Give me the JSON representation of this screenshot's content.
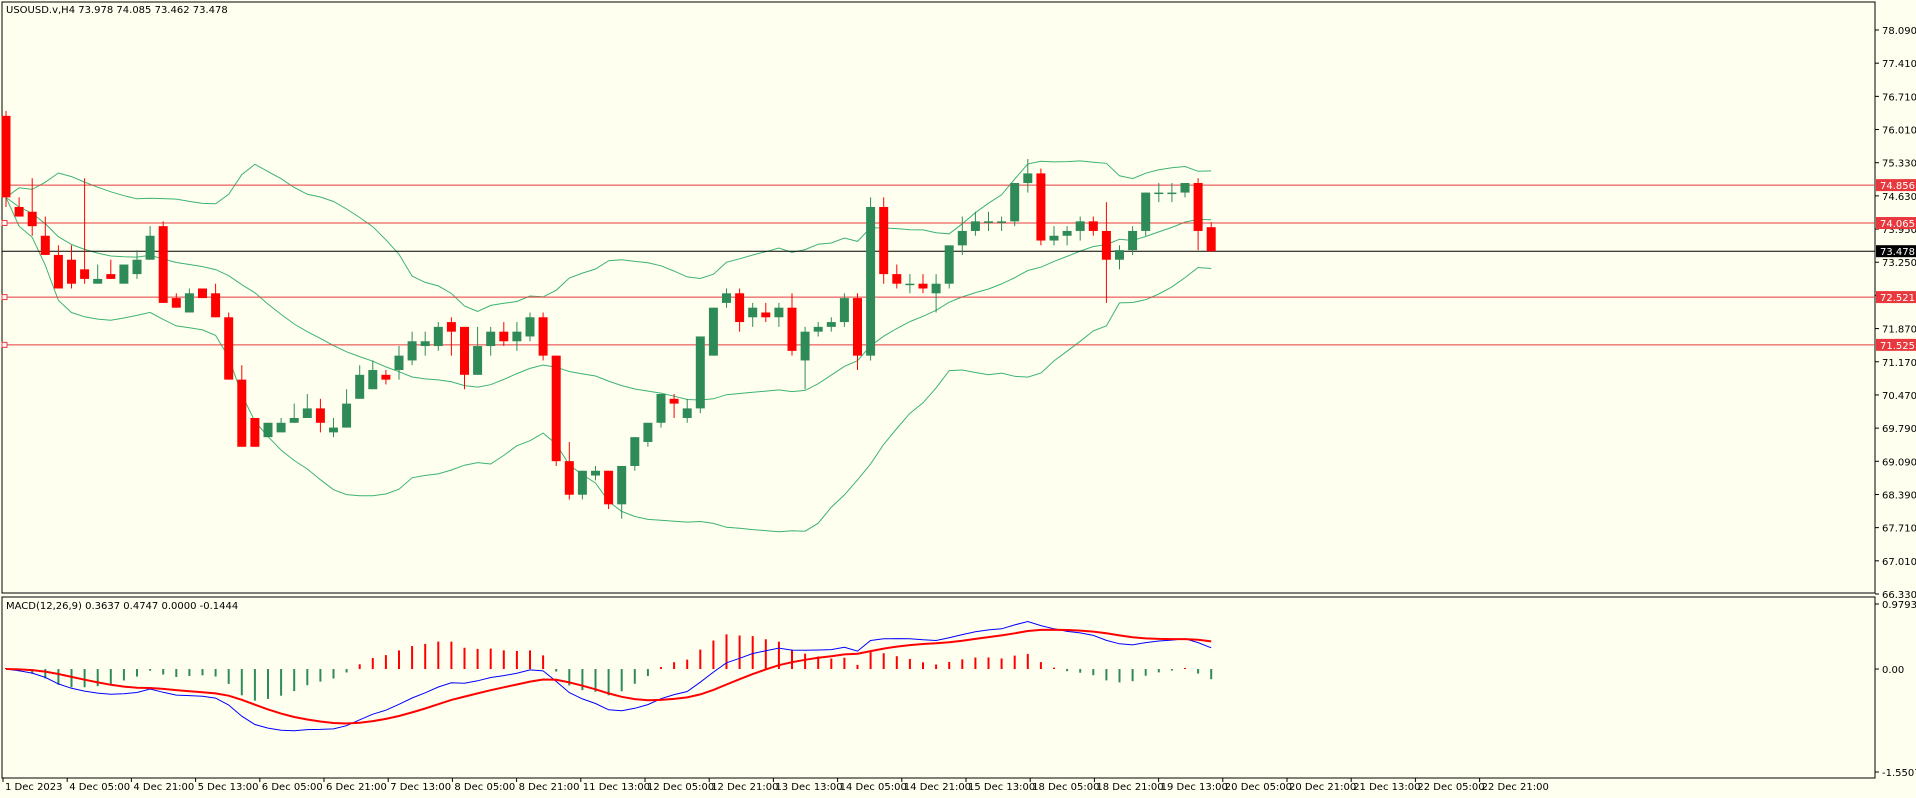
{
  "header": {
    "symbol_info": "USOUSD.v,H4  73.978 74.085 73.462 73.478",
    "macd_info": "MACD(12,26,9) 0.3637 0.4747 0.0000 -0.1444"
  },
  "colors": {
    "background": "#fffff0",
    "bull": "#2e8b57",
    "bear": "#ff0000",
    "bands": "#3cb371",
    "level_line": "#e8383d",
    "current_line": "#000000",
    "macd_line": "#0000ff",
    "signal_line": "#ff0000"
  },
  "chart_data": [
    {
      "type": "candlestick",
      "title": "USOUSD.v,H4",
      "ohlc_header": {
        "open": 73.978,
        "high": 74.085,
        "low": 73.462,
        "close": 73.478
      },
      "ylim": [
        66.33,
        78.6
      ],
      "y_ticks": [
        "78.090",
        "77.410",
        "76.710",
        "76.010",
        "75.330",
        "74.630",
        "73.950",
        "73.250",
        "72.570",
        "71.870",
        "71.170",
        "70.470",
        "69.790",
        "69.090",
        "68.390",
        "67.710",
        "67.010",
        "66.330"
      ],
      "x_ticks": [
        "1 Dec 2023",
        "4 Dec 05:00",
        "4 Dec 21:00",
        "5 Dec 13:00",
        "6 Dec 05:00",
        "6 Dec 21:00",
        "7 Dec 13:00",
        "8 Dec 05:00",
        "8 Dec 21:00",
        "11 Dec 13:00",
        "12 Dec 05:00",
        "12 Dec 21:00",
        "13 Dec 13:00",
        "14 Dec 05:00",
        "14 Dec 21:00",
        "15 Dec 13:00",
        "18 Dec 05:00",
        "18 Dec 21:00",
        "19 Dec 13:00",
        "20 Dec 05:00",
        "20 Dec 21:00",
        "21 Dec 13:00",
        "22 Dec 05:00",
        "22 Dec 21:00"
      ],
      "level_lines": [
        {
          "price": 74.856,
          "label": "74.856"
        },
        {
          "price": 74.065,
          "label": "74.065"
        },
        {
          "price": 72.521,
          "label": "72.521"
        },
        {
          "price": 71.525,
          "label": "71.525"
        }
      ],
      "current_price": {
        "price": 73.478,
        "label": "73.478"
      },
      "candles": [
        [
          76.3,
          76.4,
          74.6,
          74.4
        ],
        [
          74.4,
          74.6,
          74.2,
          74.3
        ],
        [
          74.3,
          75.0,
          74.0,
          73.8
        ],
        [
          73.8,
          74.2,
          73.4,
          73.4
        ],
        [
          73.4,
          73.6,
          72.7,
          73.3
        ],
        [
          73.3,
          73.6,
          72.8,
          72.7
        ],
        [
          73.1,
          75.0,
          72.9,
          72.8
        ],
        [
          72.8,
          73.2,
          72.9,
          73.1
        ],
        [
          73.0,
          73.3,
          72.9,
          73.2
        ],
        [
          72.8,
          73.1,
          73.2,
          73.1
        ],
        [
          73.0,
          73.5,
          73.3,
          72.9
        ],
        [
          73.3,
          74.0,
          73.8,
          73.3
        ],
        [
          74.0,
          74.1,
          72.4,
          72.5
        ],
        [
          72.5,
          72.6,
          72.3,
          72.3
        ],
        [
          72.2,
          72.7,
          72.6,
          72.5
        ],
        [
          72.7,
          72.5,
          72.5,
          72.6
        ],
        [
          72.6,
          72.8,
          72.1,
          72.1
        ],
        [
          72.1,
          72.2,
          70.8,
          70.8
        ],
        [
          70.8,
          71.1,
          69.4,
          70.0
        ],
        [
          70.0,
          70.0,
          69.4,
          69.5
        ],
        [
          69.6,
          69.9,
          69.9,
          69.6
        ],
        [
          69.7,
          70.0,
          69.9,
          69.8
        ],
        [
          69.9,
          70.3,
          70.0,
          69.9
        ],
        [
          70.0,
          70.5,
          70.2,
          70.1
        ],
        [
          70.2,
          70.4,
          69.9,
          69.7
        ],
        [
          69.7,
          70.0,
          69.8,
          69.6
        ],
        [
          69.8,
          70.6,
          70.3,
          69.8
        ],
        [
          70.4,
          71.1,
          70.9,
          70.4
        ],
        [
          70.6,
          71.2,
          71.0,
          70.6
        ],
        [
          70.9,
          71.0,
          70.8,
          70.7
        ],
        [
          71.0,
          71.5,
          71.3,
          70.8
        ],
        [
          71.2,
          71.8,
          71.6,
          71.1
        ],
        [
          71.5,
          71.8,
          71.6,
          71.3
        ],
        [
          71.5,
          72.0,
          71.9,
          71.4
        ],
        [
          72.0,
          72.1,
          71.8,
          71.3
        ],
        [
          71.9,
          71.1,
          70.9,
          70.6
        ],
        [
          70.9,
          71.9,
          71.5,
          70.9
        ],
        [
          71.5,
          71.9,
          71.8,
          71.3
        ],
        [
          71.8,
          72.0,
          71.6,
          71.5
        ],
        [
          71.6,
          72.0,
          71.8,
          71.4
        ],
        [
          71.7,
          72.2,
          72.1,
          71.6
        ],
        [
          72.1,
          72.2,
          71.3,
          71.2
        ],
        [
          71.3,
          71.3,
          69.1,
          69.0
        ],
        [
          69.1,
          69.5,
          68.4,
          68.3
        ],
        [
          68.4,
          68.8,
          68.9,
          68.3
        ],
        [
          68.8,
          69.0,
          68.9,
          68.7
        ],
        [
          68.9,
          68.9,
          68.2,
          68.1
        ],
        [
          68.2,
          68.1,
          69.0,
          67.9
        ],
        [
          69.0,
          69.1,
          69.6,
          68.9
        ],
        [
          69.5,
          69.9,
          69.9,
          69.4
        ],
        [
          69.9,
          70.2,
          70.5,
          69.8
        ],
        [
          70.4,
          70.5,
          70.3,
          70.0
        ],
        [
          70.0,
          70.4,
          70.2,
          69.9
        ],
        [
          70.2,
          70.8,
          71.7,
          70.1
        ],
        [
          71.3,
          71.7,
          72.3,
          71.3
        ],
        [
          72.4,
          72.7,
          72.6,
          72.3
        ],
        [
          72.6,
          72.7,
          72.0,
          71.8
        ],
        [
          72.1,
          72.4,
          72.3,
          71.9
        ],
        [
          72.2,
          72.4,
          72.1,
          72.0
        ],
        [
          72.1,
          72.4,
          72.3,
          71.9
        ],
        [
          72.3,
          72.6,
          71.4,
          71.3
        ],
        [
          71.2,
          71.9,
          71.8,
          70.6
        ],
        [
          71.8,
          72.0,
          71.9,
          71.7
        ],
        [
          71.9,
          72.1,
          72.0,
          71.8
        ],
        [
          72.0,
          72.6,
          72.5,
          71.9
        ],
        [
          72.5,
          72.6,
          71.3,
          71.0
        ],
        [
          71.3,
          74.6,
          74.4,
          71.2
        ],
        [
          74.4,
          74.6,
          73.0,
          72.8
        ],
        [
          73.0,
          73.2,
          72.8,
          72.7
        ],
        [
          72.8,
          73.0,
          72.8,
          72.6
        ],
        [
          72.8,
          73.0,
          72.7,
          72.6
        ],
        [
          72.6,
          73.0,
          72.8,
          72.2
        ],
        [
          72.8,
          73.6,
          73.6,
          72.7
        ],
        [
          73.6,
          74.2,
          73.9,
          73.4
        ],
        [
          73.9,
          74.3,
          74.1,
          73.8
        ],
        [
          74.1,
          74.3,
          74.1,
          73.9
        ],
        [
          74.1,
          74.2,
          74.1,
          73.9
        ],
        [
          74.1,
          74.9,
          74.9,
          74.0
        ],
        [
          74.9,
          75.4,
          75.1,
          74.7
        ],
        [
          75.1,
          75.2,
          73.7,
          73.6
        ],
        [
          73.7,
          74.0,
          73.8,
          73.6
        ],
        [
          73.8,
          74.0,
          73.9,
          73.6
        ],
        [
          73.9,
          74.2,
          74.1,
          73.7
        ],
        [
          74.1,
          74.2,
          73.9,
          73.8
        ],
        [
          73.9,
          74.5,
          73.3,
          72.4
        ],
        [
          73.3,
          73.6,
          73.5,
          73.1
        ],
        [
          73.5,
          74.0,
          73.9,
          73.4
        ],
        [
          73.9,
          74.7,
          74.7,
          73.8
        ],
        [
          74.7,
          74.9,
          74.7,
          74.5
        ],
        [
          74.7,
          74.9,
          74.7,
          74.5
        ],
        [
          74.7,
          74.9,
          74.9,
          74.6
        ],
        [
          74.9,
          75.0,
          73.9,
          73.5
        ],
        [
          73.978,
          74.085,
          73.478,
          73.462
        ]
      ]
    },
    {
      "type": "macd",
      "title": "MACD(12,26,9)",
      "values": {
        "macd": 0.3637,
        "signal": 0.4747,
        "value3": 0.0,
        "histogram": -0.1444
      },
      "ylim": [
        -1.5507,
        0.9793
      ],
      "y_ticks": [
        "0.9793",
        "0.00",
        "-1.5507"
      ]
    }
  ]
}
